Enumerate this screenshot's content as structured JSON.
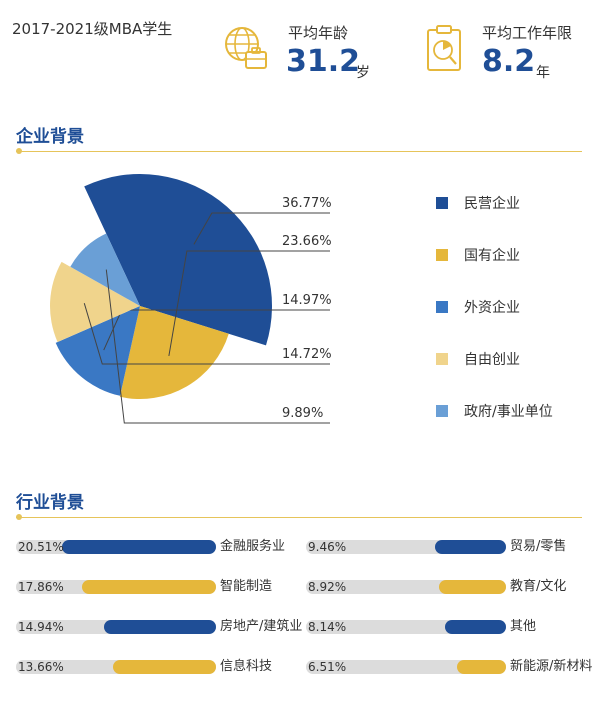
{
  "header": {
    "cohort": "2017-2021级MBA学生",
    "avg_age_label": "平均年龄",
    "avg_age_value": "31.2",
    "avg_age_unit": "岁",
    "avg_work_label": "平均工作年限",
    "avg_work_value": "8.2",
    "avg_work_unit": "年",
    "age_icon": "globe-suitcase-icon",
    "work_icon": "clipboard-chart-icon"
  },
  "sections": {
    "enterprise": "企业背景",
    "industry": "行业背景"
  },
  "colors": {
    "navy": "#1f4e96",
    "gold": "#e5b73b",
    "blue": "#3a78c4",
    "lightgold": "#f0d48c",
    "lightblue": "#6a9fd6",
    "track": "#dcdcdc",
    "rule": "#e6c45a"
  },
  "chart_data": [
    {
      "type": "pie",
      "variant": "rose",
      "categories": [
        "民营企业",
        "国有企业",
        "外资企业",
        "自由创业",
        "政府/事业单位"
      ],
      "values": [
        36.77,
        23.66,
        14.97,
        14.72,
        9.89
      ],
      "labels": [
        "36.77%",
        "23.66%",
        "14.97%",
        "14.72%",
        "9.89%"
      ],
      "colors": [
        "#1f4e96",
        "#e5b73b",
        "#3a78c4",
        "#f0d48c",
        "#6a9fd6"
      ],
      "legend": "right"
    },
    {
      "type": "bar",
      "orientation": "horizontal",
      "categories": [
        "金融服务业",
        "智能制造",
        "房地产/建筑业",
        "信息科技",
        "贸易/零售",
        "教育/文化",
        "其他",
        "新能源/新材料"
      ],
      "values": [
        20.51,
        17.86,
        14.94,
        13.66,
        9.46,
        8.92,
        8.14,
        6.51
      ],
      "labels": [
        "20.51%",
        "17.86%",
        "14.94%",
        "13.66%",
        "9.46%",
        "8.92%",
        "8.14%",
        "6.51%"
      ],
      "colors": [
        "#1f4e96",
        "#e5b73b",
        "#1f4e96",
        "#e5b73b",
        "#1f4e96",
        "#e5b73b",
        "#1f4e96",
        "#e5b73b"
      ]
    }
  ]
}
